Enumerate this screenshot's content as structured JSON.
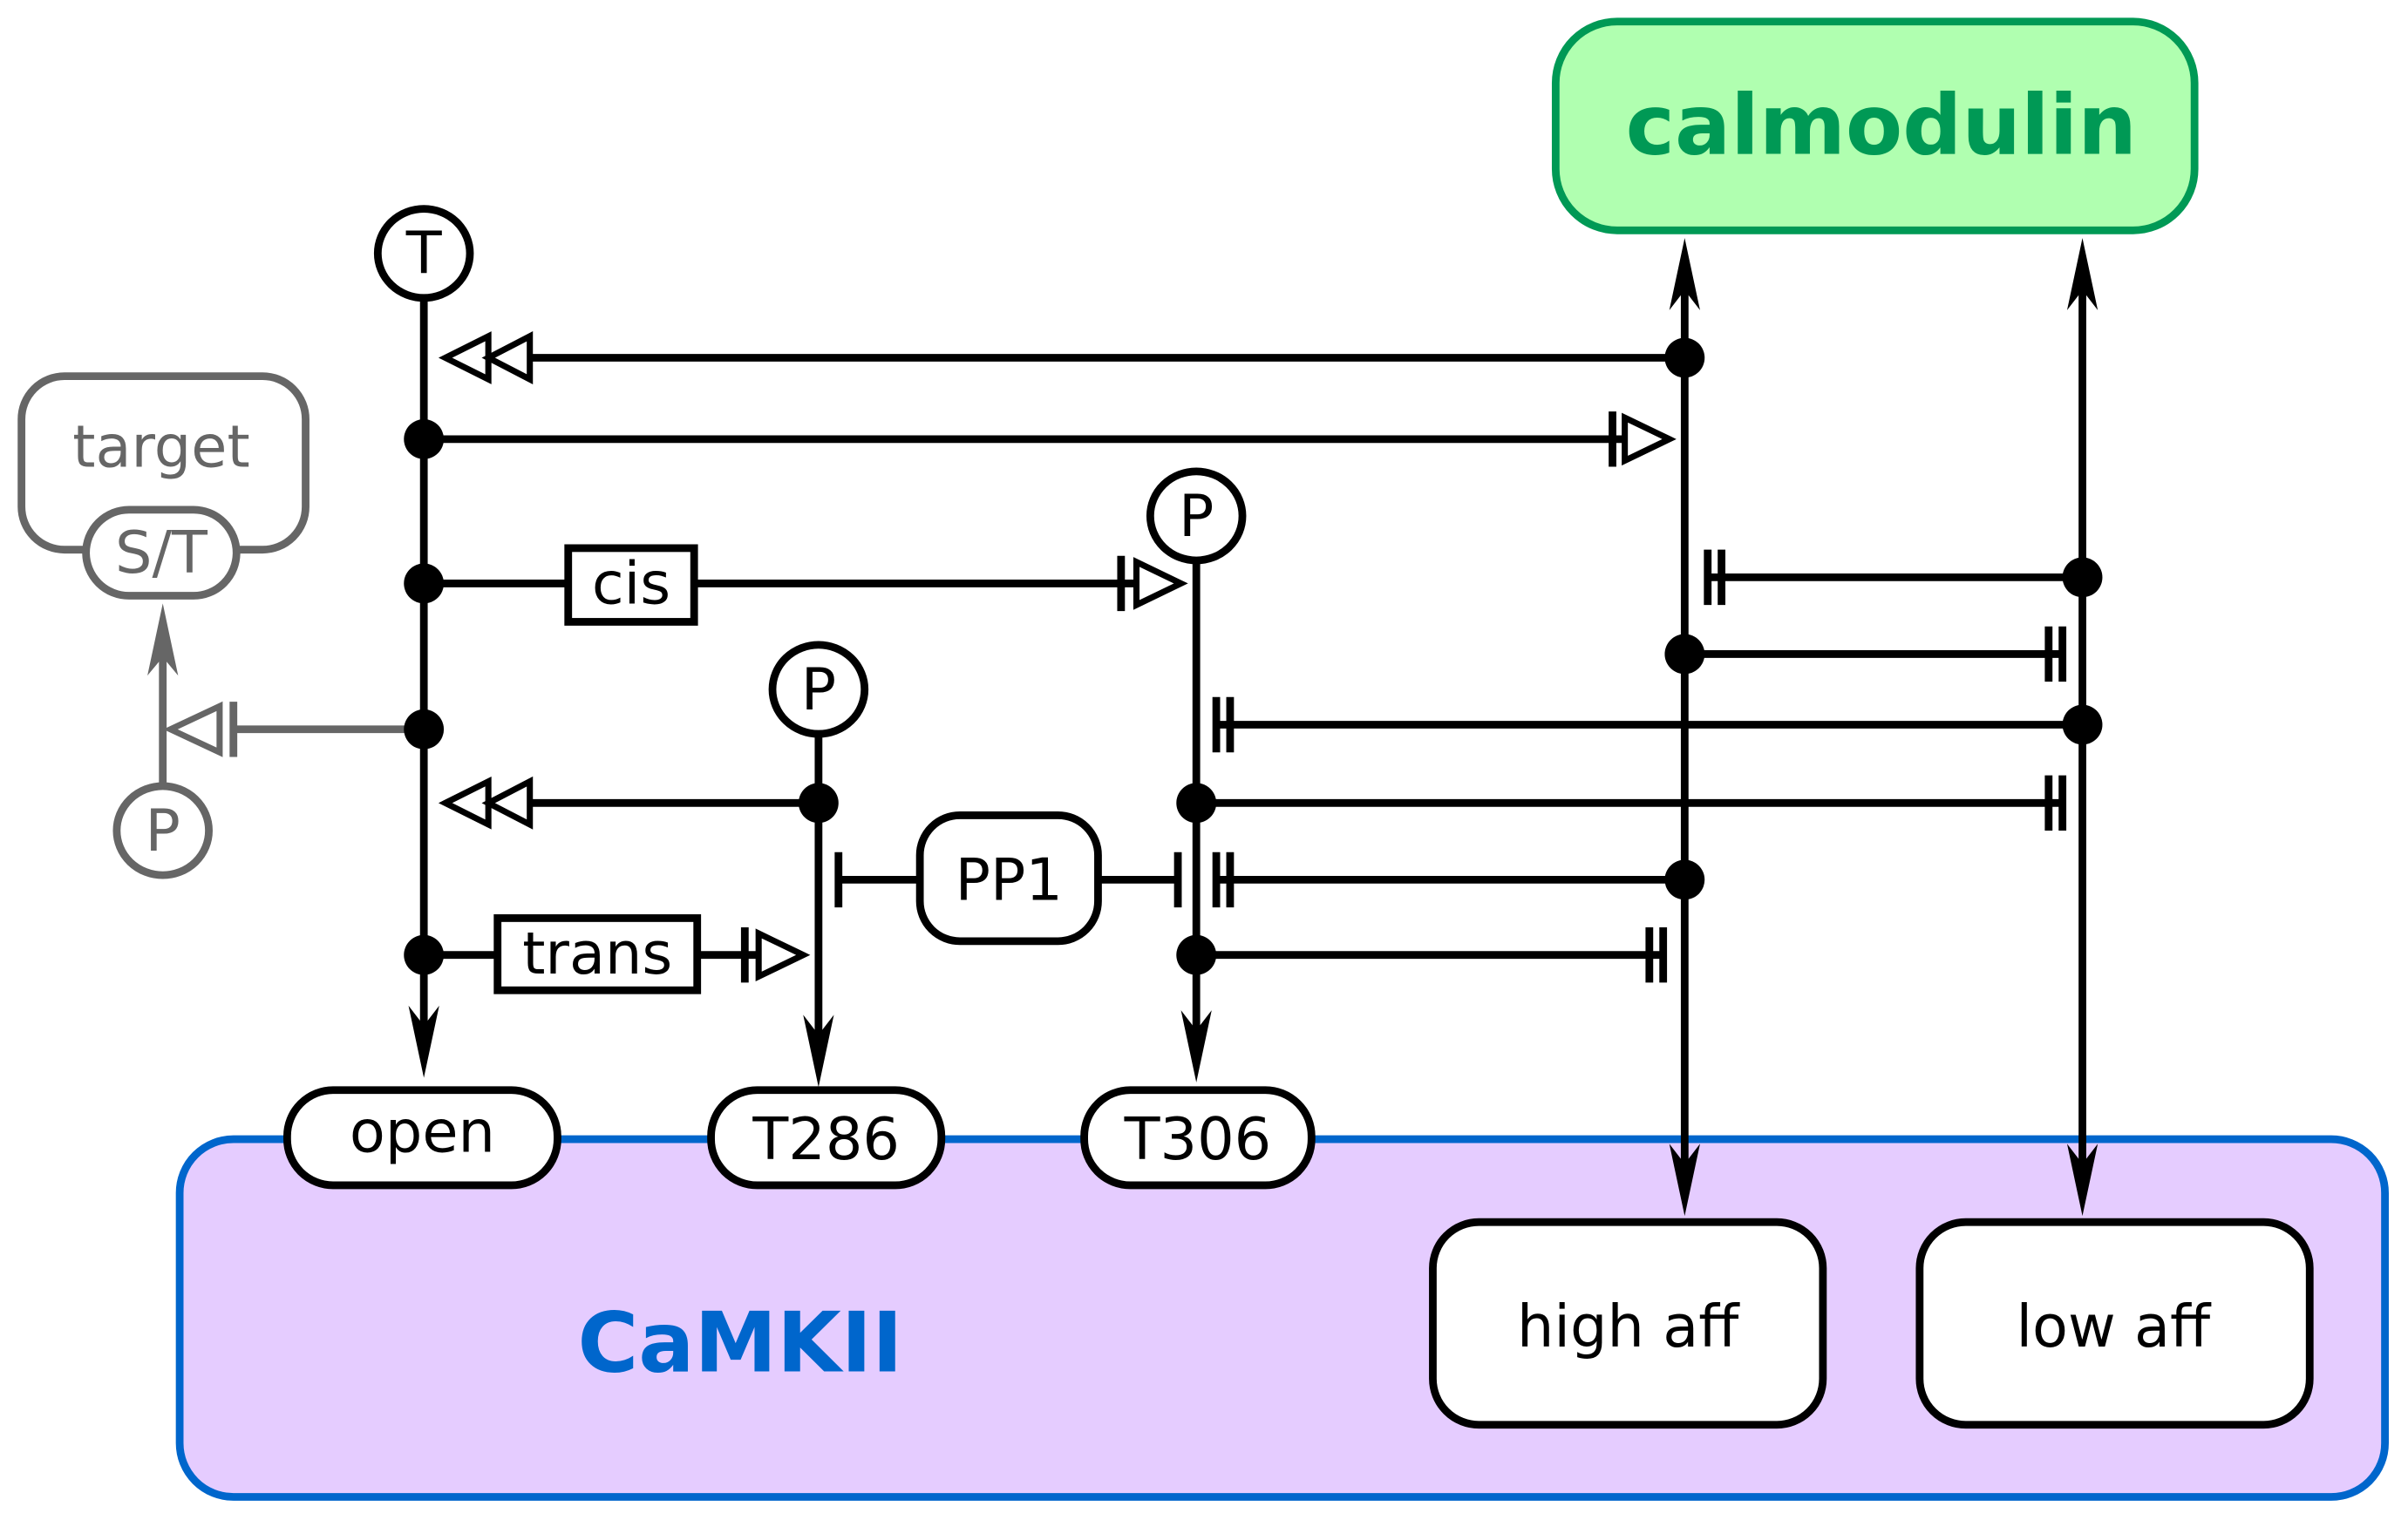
{
  "nodes": {
    "calmodulin": "calmodulin",
    "camkii": "CaMKII",
    "target": "target",
    "target_site": "S/T",
    "target_phospho": "P",
    "t_site": "T",
    "p286": "P",
    "p306": "P",
    "open": "open",
    "t286": "T286",
    "t306": "T306",
    "high_aff": "high aff",
    "low_aff": "low aff",
    "pp1": "PP1",
    "cis": "cis",
    "trans": "trans"
  },
  "colors": {
    "calmodulin_fill": "#b0ffb0",
    "calmodulin_stroke": "#009955",
    "camkii_fill": "#e5ccff",
    "camkii_stroke": "#0066cc",
    "target_gray": "#666666"
  }
}
